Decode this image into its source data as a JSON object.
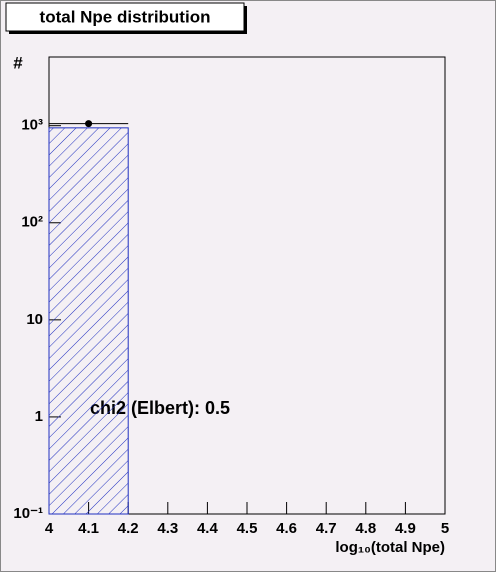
{
  "chart_data": {
    "type": "histogram",
    "title": "total Npe distribution",
    "bins": [
      4,
      4.2,
      4.4,
      4.6,
      4.8,
      5
    ],
    "values": [
      950,
      0,
      0,
      0,
      0
    ],
    "color": "#2030c0",
    "points": {
      "x": [
        4.1
      ],
      "values": [
        1050
      ],
      "color": "#000000"
    },
    "xlabel": "log₁₀(total Npe)",
    "ylabel": "#",
    "annotation": "chi2 (Elbert): 0.5",
    "log_y": true,
    "xlim": [
      4,
      5
    ],
    "xticks": [
      4,
      4.1,
      4.2,
      4.3,
      4.4,
      4.5,
      4.6,
      4.7,
      4.8,
      4.9,
      5
    ],
    "ylim": [
      0.1,
      5100
    ],
    "yticks": [
      {
        "value": 0.1,
        "label": "10⁻¹"
      },
      1,
      10,
      {
        "value": 100,
        "label": "10²"
      },
      {
        "value": 1000,
        "label": "10³"
      }
    ]
  }
}
